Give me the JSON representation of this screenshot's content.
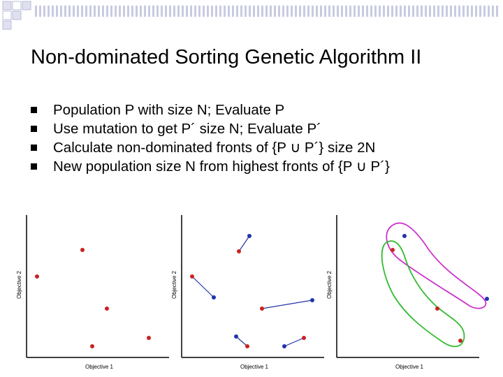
{
  "slide": {
    "title": "Non-dominated Sorting Genetic Algorithm II",
    "bullets": [
      "Population P with size N; Evaluate P",
      "Use mutation to get P´ size N; Evaluate P´",
      "Calculate non-dominated fronts of {P ∪ P´} size 2N",
      "New population size N from highest fronts of {P ∪ P´}"
    ]
  },
  "plots": [
    {
      "xlabel": "Objective 1",
      "ylabel": "Objective 2"
    },
    {
      "xlabel": "Objective 1",
      "ylabel": "Objective 2"
    },
    {
      "xlabel": "Objective 1",
      "ylabel": "Objective 2"
    }
  ],
  "colors": {
    "parent_point": "#cc2222",
    "offspring_point": "#2233aa",
    "front_1": "#cc33cc",
    "front_2": "#33bb33",
    "deco_grid": "#c8cbe0"
  },
  "icons": {
    "bullet": "square-bullet-icon"
  }
}
